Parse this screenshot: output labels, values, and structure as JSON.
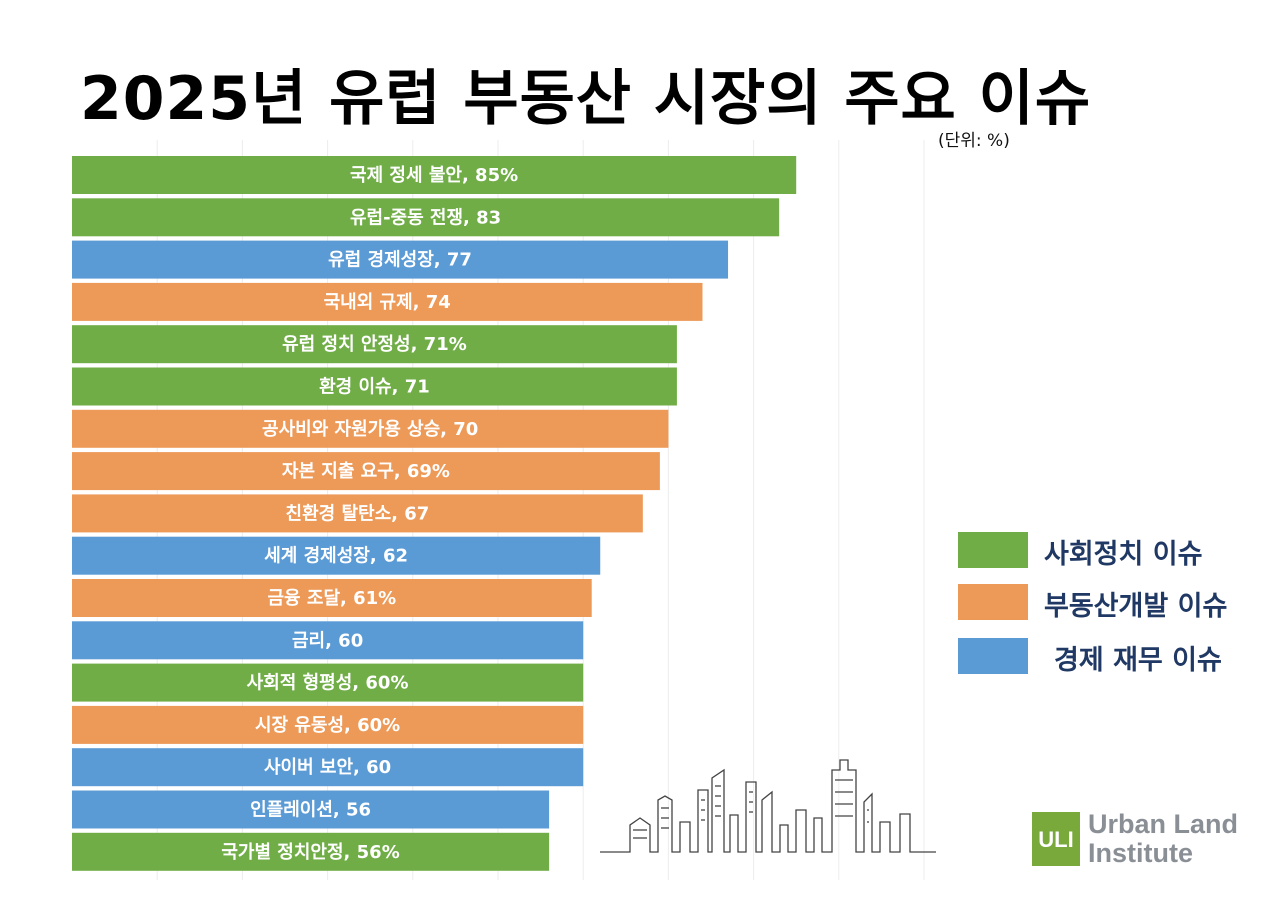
{
  "title": "2025년 유럽 부동산 시장의 주요 이슈",
  "unit": "(단위: %)",
  "colors": {
    "social": "#70ad47",
    "realestate": "#ed9a59",
    "economy": "#5b9bd5"
  },
  "chart_data": {
    "type": "bar",
    "orientation": "horizontal",
    "title": "2025년 유럽 부동산 시장의 주요 이슈",
    "unit": "(단위: %)",
    "xlim": [
      0,
      100
    ],
    "grid": true,
    "legend_position": "right",
    "bars": [
      {
        "label": "국제 정세 불안, 85%",
        "value": 85,
        "category": "social"
      },
      {
        "label": "유럽-중동 전쟁, 83",
        "value": 83,
        "category": "social"
      },
      {
        "label": "유럽 경제성장, 77",
        "value": 77,
        "category": "economy"
      },
      {
        "label": "국내외 규제, 74",
        "value": 74,
        "category": "realestate"
      },
      {
        "label": "유럽 정치 안정성, 71%",
        "value": 71,
        "category": "social"
      },
      {
        "label": "환경 이슈, 71",
        "value": 71,
        "category": "social"
      },
      {
        "label": "공사비와 자원가용 상승, 70",
        "value": 70,
        "category": "realestate"
      },
      {
        "label": "자본 지출 요구, 69%",
        "value": 69,
        "category": "realestate"
      },
      {
        "label": "친환경 탈탄소, 67",
        "value": 67,
        "category": "realestate"
      },
      {
        "label": "세계 경제성장, 62",
        "value": 62,
        "category": "economy"
      },
      {
        "label": "금융 조달, 61%",
        "value": 61,
        "category": "realestate"
      },
      {
        "label": "금리, 60",
        "value": 60,
        "category": "economy"
      },
      {
        "label": "사회적 형평성, 60%",
        "value": 60,
        "category": "social"
      },
      {
        "label": "시장 유동성, 60%",
        "value": 60,
        "category": "realestate"
      },
      {
        "label": "사이버 보안, 60",
        "value": 60,
        "category": "economy"
      },
      {
        "label": "인플레이션, 56",
        "value": 56,
        "category": "economy"
      },
      {
        "label": "국가별 정치안정, 56%",
        "value": 56,
        "category": "social"
      }
    ],
    "legend": [
      {
        "category": "social",
        "label": "사회정치 이슈"
      },
      {
        "category": "realestate",
        "label": "부동산개발 이슈"
      },
      {
        "category": "economy",
        "label": "경제 재무 이슈"
      }
    ]
  },
  "logo": {
    "mark": "ULI",
    "line1": "Urban Land",
    "line2": "Institute"
  }
}
